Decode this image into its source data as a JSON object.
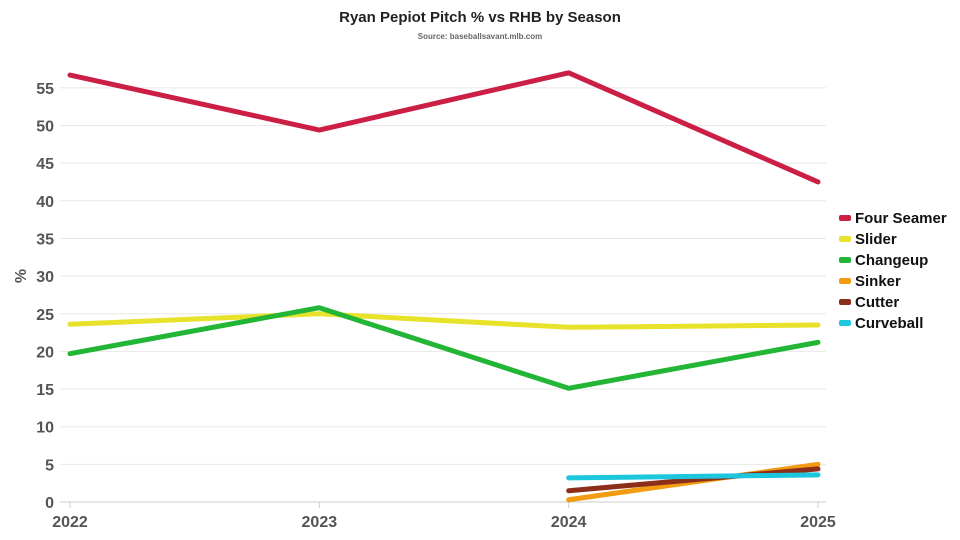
{
  "chart_data": {
    "type": "line",
    "title": "Ryan Pepiot Pitch % vs RHB by Season",
    "subtitle": "Source: baseballsavant.mlb.com",
    "xlabel": "",
    "ylabel": "%",
    "x": [
      "2022",
      "2023",
      "2024",
      "2025"
    ],
    "yticks": [
      0,
      5,
      10,
      15,
      20,
      25,
      30,
      35,
      40,
      45,
      50,
      55
    ],
    "ylim": [
      0,
      57
    ],
    "grid": true,
    "legend_position": "right",
    "series": [
      {
        "name": "Four Seamer",
        "color": "#cc1f45",
        "values": [
          56.7,
          49.4,
          57.0,
          42.5
        ]
      },
      {
        "name": "Slider",
        "color": "#e8e22a",
        "values": [
          23.6,
          25.0,
          23.2,
          23.5
        ]
      },
      {
        "name": "Changeup",
        "color": "#22b536",
        "values": [
          19.7,
          25.8,
          15.1,
          21.2
        ]
      },
      {
        "name": "Sinker",
        "color": "#f39c12",
        "values": [
          null,
          null,
          0.3,
          5.0
        ]
      },
      {
        "name": "Cutter",
        "color": "#8b2e1a",
        "values": [
          null,
          null,
          1.5,
          4.4
        ]
      },
      {
        "name": "Curveball",
        "color": "#1cc6dc",
        "values": [
          null,
          null,
          3.2,
          3.6
        ]
      }
    ]
  }
}
